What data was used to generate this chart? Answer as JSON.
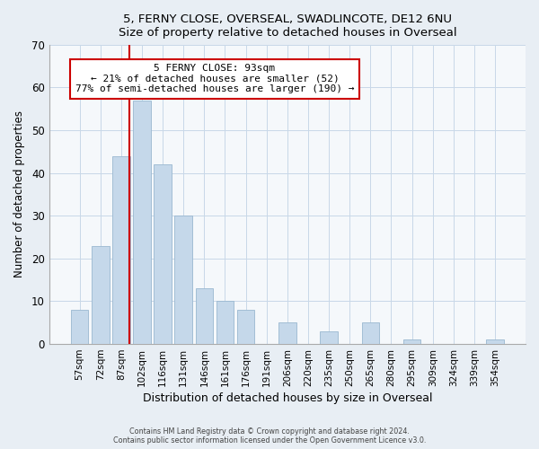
{
  "title_line1": "5, FERNY CLOSE, OVERSEAL, SWADLINCOTE, DE12 6NU",
  "title_line2": "Size of property relative to detached houses in Overseal",
  "xlabel": "Distribution of detached houses by size in Overseal",
  "ylabel": "Number of detached properties",
  "bar_labels": [
    "57sqm",
    "72sqm",
    "87sqm",
    "102sqm",
    "116sqm",
    "131sqm",
    "146sqm",
    "161sqm",
    "176sqm",
    "191sqm",
    "206sqm",
    "220sqm",
    "235sqm",
    "250sqm",
    "265sqm",
    "280sqm",
    "295sqm",
    "309sqm",
    "324sqm",
    "339sqm",
    "354sqm"
  ],
  "bar_values": [
    8,
    23,
    44,
    57,
    42,
    30,
    13,
    10,
    8,
    0,
    5,
    0,
    3,
    0,
    5,
    0,
    1,
    0,
    0,
    0,
    1
  ],
  "bar_color": "#c5d8ea",
  "bar_edge_color": "#9ab8d0",
  "reference_line_label": "5 FERNY CLOSE: 93sqm",
  "annotation_line1": "← 21% of detached houses are smaller (52)",
  "annotation_line2": "77% of semi-detached houses are larger (190) →",
  "annotation_box_color": "#ffffff",
  "annotation_box_edge_color": "#cc0000",
  "ref_line_color": "#cc0000",
  "ylim": [
    0,
    70
  ],
  "yticks": [
    0,
    10,
    20,
    30,
    40,
    50,
    60,
    70
  ],
  "footer_line1": "Contains HM Land Registry data © Crown copyright and database right 2024.",
  "footer_line2": "Contains public sector information licensed under the Open Government Licence v3.0.",
  "background_color": "#e8eef4",
  "plot_background_color": "#f5f8fb"
}
